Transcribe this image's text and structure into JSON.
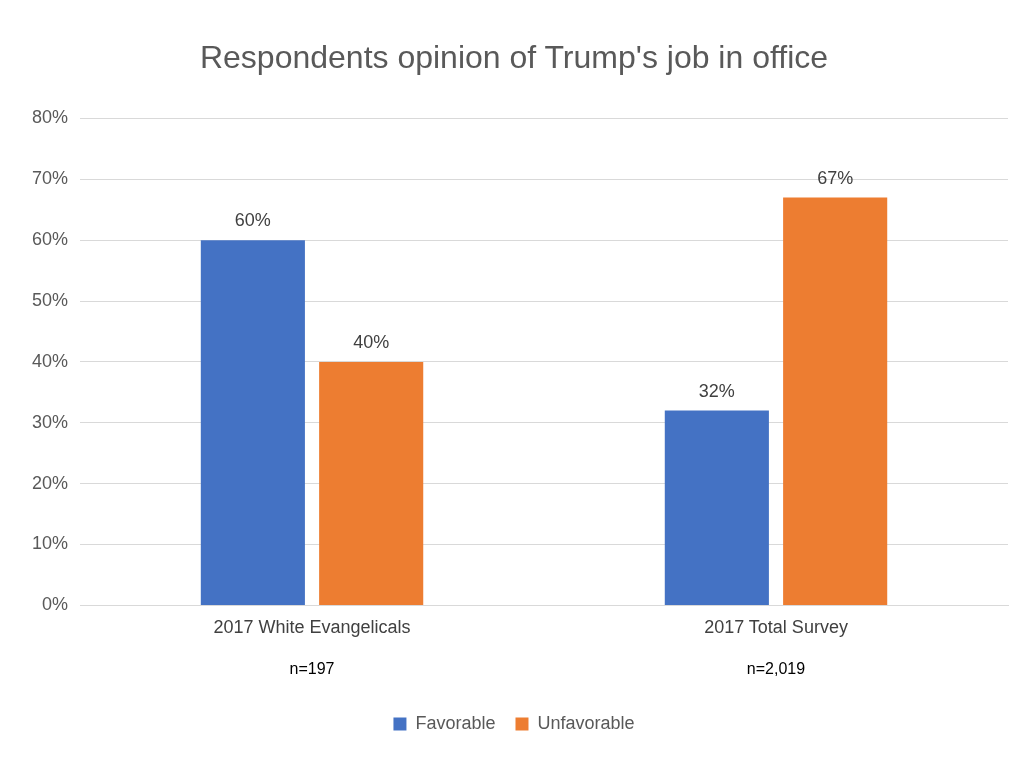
{
  "chart_data": {
    "type": "bar",
    "title": "Respondents opinion of Trump's job in office",
    "categories": [
      "2017 White Evangelicals",
      "2017 Total Survey"
    ],
    "series": [
      {
        "name": "Favorable",
        "color": "#4472c4",
        "values": [
          60,
          32
        ],
        "value_labels": [
          "60%",
          "32%"
        ]
      },
      {
        "name": "Unfavorable",
        "color": "#ed7d31",
        "values": [
          40,
          67
        ],
        "value_labels": [
          "40%",
          "67%"
        ]
      }
    ],
    "ylim": [
      0,
      80
    ],
    "yticks": [
      {
        "value": 0,
        "label": "0%"
      },
      {
        "value": 10,
        "label": "10%"
      },
      {
        "value": 20,
        "label": "20%"
      },
      {
        "value": 30,
        "label": "30%"
      },
      {
        "value": 40,
        "label": "40%"
      },
      {
        "value": 50,
        "label": "50%"
      },
      {
        "value": 60,
        "label": "60%"
      },
      {
        "value": 70,
        "label": "70%"
      },
      {
        "value": 80,
        "label": "80%"
      }
    ],
    "annotations": [
      "n=197",
      "n=2,019"
    ],
    "grid": "y",
    "legend": "bottom"
  }
}
